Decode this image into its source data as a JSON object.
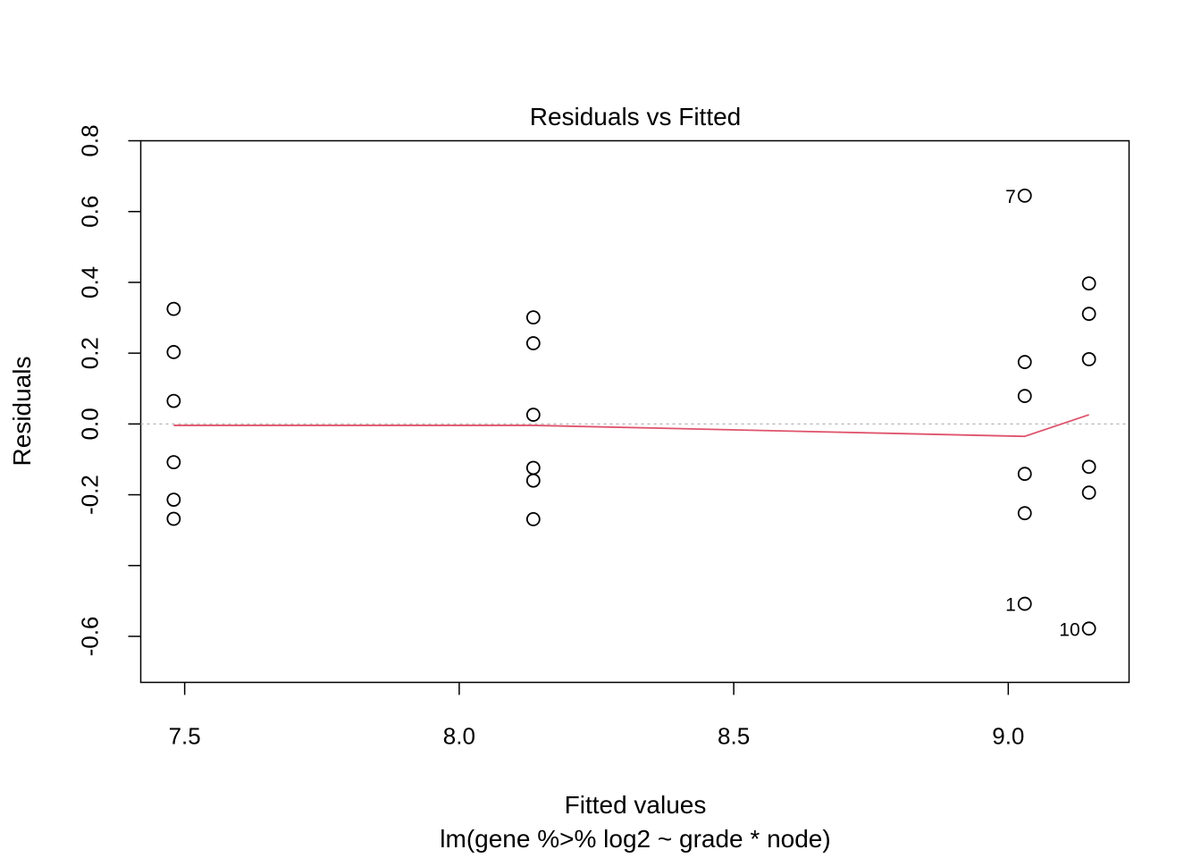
{
  "chart_data": {
    "type": "scatter",
    "title": "Residuals vs Fitted",
    "xlabel": "Fitted values",
    "subtitle": "lm(gene %>% log2 ~ grade * node)",
    "ylabel": "Residuals",
    "xlim": [
      7.42,
      9.22
    ],
    "ylim": [
      -0.73,
      0.8
    ],
    "x_ticks": [
      7.5,
      8.0,
      8.5,
      9.0
    ],
    "x_tick_labels": [
      "7.5",
      "8.0",
      "8.5",
      "9.0"
    ],
    "y_ticks": [
      -0.6,
      -0.4,
      -0.2,
      0.0,
      0.2,
      0.4,
      0.6,
      0.8
    ],
    "y_tick_labels": [
      "-0.6",
      "",
      "-0.2",
      "0.0",
      "0.2",
      "0.4",
      "0.6",
      "0.8"
    ],
    "grid": false,
    "reference_line": {
      "y": 0,
      "style": "dotted",
      "color": "#bbbbbb"
    },
    "colors": {
      "points": "#000000",
      "smooth": "#DF536B"
    },
    "points": [
      {
        "x": 7.48,
        "y": 0.325
      },
      {
        "x": 7.48,
        "y": 0.203
      },
      {
        "x": 7.48,
        "y": 0.065
      },
      {
        "x": 7.48,
        "y": -0.108
      },
      {
        "x": 7.48,
        "y": -0.214
      },
      {
        "x": 7.48,
        "y": -0.268
      },
      {
        "x": 8.135,
        "y": 0.301
      },
      {
        "x": 8.135,
        "y": 0.228
      },
      {
        "x": 8.135,
        "y": 0.026
      },
      {
        "x": 8.135,
        "y": -0.124
      },
      {
        "x": 8.135,
        "y": -0.16
      },
      {
        "x": 8.135,
        "y": -0.269
      },
      {
        "x": 9.03,
        "y": 0.645,
        "label": "7"
      },
      {
        "x": 9.03,
        "y": 0.175
      },
      {
        "x": 9.03,
        "y": 0.079
      },
      {
        "x": 9.03,
        "y": -0.141
      },
      {
        "x": 9.03,
        "y": -0.252
      },
      {
        "x": 9.03,
        "y": -0.508,
        "label": "1"
      },
      {
        "x": 9.147,
        "y": 0.397
      },
      {
        "x": 9.147,
        "y": 0.311
      },
      {
        "x": 9.147,
        "y": 0.183
      },
      {
        "x": 9.147,
        "y": -0.121
      },
      {
        "x": 9.147,
        "y": -0.194
      },
      {
        "x": 9.147,
        "y": -0.578,
        "label": "10"
      }
    ],
    "smooth": [
      {
        "x": 7.48,
        "y": -0.004
      },
      {
        "x": 8.135,
        "y": -0.004
      },
      {
        "x": 9.03,
        "y": -0.035
      },
      {
        "x": 9.147,
        "y": 0.026
      }
    ]
  }
}
